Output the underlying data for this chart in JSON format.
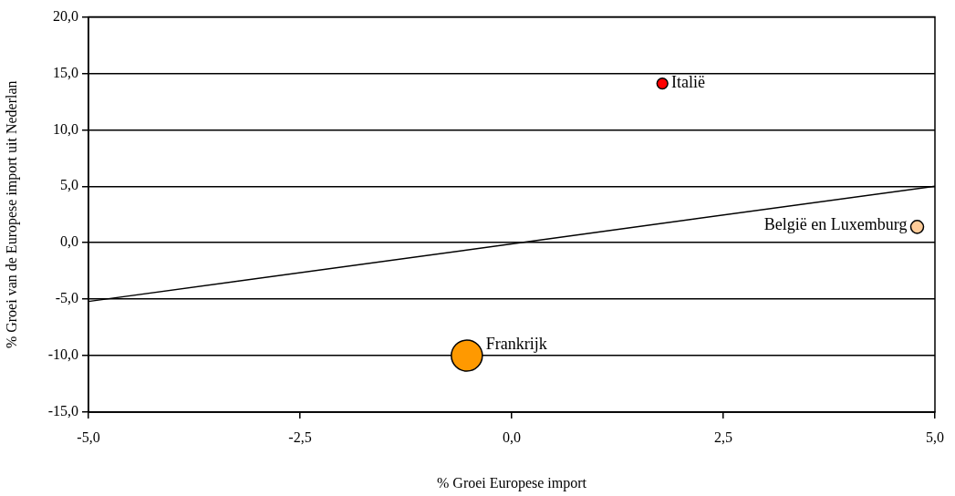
{
  "chart_data": {
    "type": "bubble",
    "xlabel": "% Groei Europese import",
    "ylabel": "% Groei van de Europese import uit Nederlan",
    "xlim": [
      -5,
      5
    ],
    "xticks": [
      {
        "value": -5,
        "label": "-5,0"
      },
      {
        "value": -2.5,
        "label": "-2,5"
      },
      {
        "value": 0,
        "label": "0,0"
      },
      {
        "value": 2.5,
        "label": "2,5"
      },
      {
        "value": 5,
        "label": "5,0"
      }
    ],
    "ylim": [
      -15,
      20
    ],
    "yticks": [
      {
        "value": -15,
        "label": "-15,0"
      },
      {
        "value": -10,
        "label": "-10,0"
      },
      {
        "value": -5,
        "label": "-5,0"
      },
      {
        "value": 0,
        "label": "0,0"
      },
      {
        "value": 5,
        "label": "5,0"
      },
      {
        "value": 10,
        "label": "10,0"
      },
      {
        "value": 15,
        "label": "15,0"
      },
      {
        "value": 20,
        "label": "20,0"
      }
    ],
    "grid": "y",
    "legend": false,
    "series": [
      {
        "x": [
          1.78,
          4.79,
          -0.53
        ],
        "values": [
          14.1,
          1.4,
          -10.0
        ],
        "sizes": [
          0.12,
          0.17,
          1
        ],
        "colors": [
          "#ff0000",
          "#ffcc99",
          "#ff9900"
        ]
      },
      {
        "type": "line",
        "x": [
          -5,
          5
        ],
        "values": [
          -5.2,
          5
        ],
        "color": "#000000",
        "marker": "none"
      }
    ],
    "annotations": [
      {
        "text": "Italië",
        "x": 1.78,
        "y": 14.1
      },
      {
        "text": "België en Luxemburg",
        "x": 4.79,
        "y": 1.4
      },
      {
        "text": "Frankrijk",
        "x": -0.53,
        "y": -10.0
      }
    ]
  }
}
